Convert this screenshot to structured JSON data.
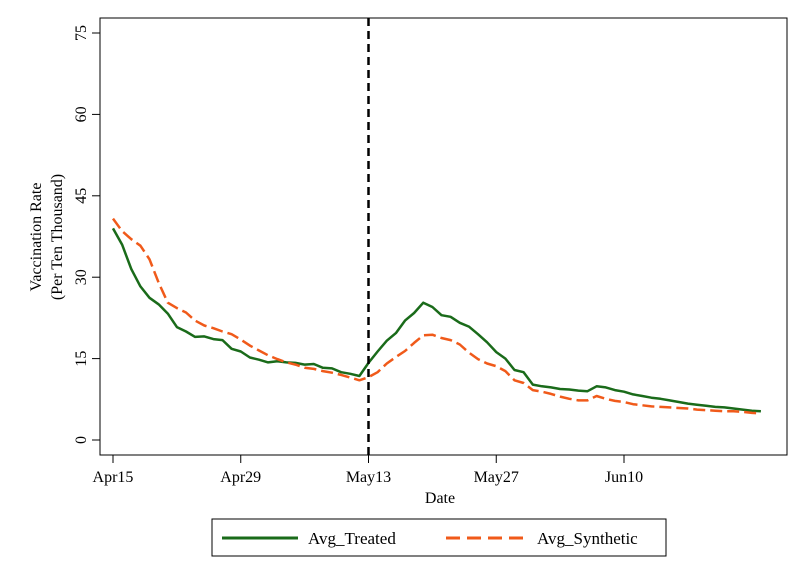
{
  "chart_data": {
    "type": "line",
    "xlabel": "Date",
    "ylabel_lines": [
      "Vaccination Rate",
      "(Per Ten Thousand)"
    ],
    "ylim": [
      0,
      75
    ],
    "yticks": [
      0,
      15,
      30,
      45,
      60,
      75
    ],
    "xlim": [
      "2021-04-15",
      "2021-06-26"
    ],
    "xticks": [
      {
        "date": "2021-04-15",
        "label": "Apr15"
      },
      {
        "date": "2021-04-29",
        "label": "Apr29"
      },
      {
        "date": "2021-05-13",
        "label": "May13"
      },
      {
        "date": "2021-05-27",
        "label": "May27"
      },
      {
        "date": "2021-06-10",
        "label": "Jun10"
      }
    ],
    "vline": {
      "date": "2021-05-13",
      "style": "dashed",
      "color": "#000000"
    },
    "grid": false,
    "legend_position": "bottom",
    "series": [
      {
        "name": "Avg_Treated",
        "color": "#1a6b1a",
        "dash": "solid",
        "points": [
          [
            "2021-04-15",
            39.0
          ],
          [
            "2021-04-16",
            36.0
          ],
          [
            "2021-04-17",
            31.5
          ],
          [
            "2021-04-18",
            28.3
          ],
          [
            "2021-04-19",
            26.2
          ],
          [
            "2021-04-20",
            25.0
          ],
          [
            "2021-04-21",
            23.3
          ],
          [
            "2021-04-22",
            20.8
          ],
          [
            "2021-04-23",
            20.0
          ],
          [
            "2021-04-24",
            19.0
          ],
          [
            "2021-04-25",
            19.1
          ],
          [
            "2021-04-26",
            18.6
          ],
          [
            "2021-04-27",
            18.4
          ],
          [
            "2021-04-28",
            16.8
          ],
          [
            "2021-04-29",
            16.3
          ],
          [
            "2021-04-30",
            15.2
          ],
          [
            "2021-05-01",
            14.8
          ],
          [
            "2021-05-02",
            14.3
          ],
          [
            "2021-05-03",
            14.5
          ],
          [
            "2021-05-04",
            14.3
          ],
          [
            "2021-05-05",
            14.2
          ],
          [
            "2021-05-06",
            13.9
          ],
          [
            "2021-05-07",
            14.0
          ],
          [
            "2021-05-08",
            13.3
          ],
          [
            "2021-05-09",
            13.2
          ],
          [
            "2021-05-10",
            12.5
          ],
          [
            "2021-05-11",
            12.2
          ],
          [
            "2021-05-12",
            11.8
          ],
          [
            "2021-05-13",
            14.2
          ],
          [
            "2021-05-14",
            16.3
          ],
          [
            "2021-05-15",
            18.3
          ],
          [
            "2021-05-16",
            19.7
          ],
          [
            "2021-05-17",
            22.0
          ],
          [
            "2021-05-18",
            23.4
          ],
          [
            "2021-05-19",
            25.3
          ],
          [
            "2021-05-20",
            24.5
          ],
          [
            "2021-05-21",
            23.0
          ],
          [
            "2021-05-22",
            22.7
          ],
          [
            "2021-05-23",
            21.6
          ],
          [
            "2021-05-24",
            20.9
          ],
          [
            "2021-05-25",
            19.5
          ],
          [
            "2021-05-26",
            18.0
          ],
          [
            "2021-05-27",
            16.2
          ],
          [
            "2021-05-28",
            15.0
          ],
          [
            "2021-05-29",
            12.9
          ],
          [
            "2021-05-30",
            12.5
          ],
          [
            "2021-05-31",
            10.2
          ],
          [
            "2021-06-01",
            9.9
          ],
          [
            "2021-06-02",
            9.7
          ],
          [
            "2021-06-03",
            9.4
          ],
          [
            "2021-06-04",
            9.3
          ],
          [
            "2021-06-05",
            9.1
          ],
          [
            "2021-06-06",
            9.0
          ],
          [
            "2021-06-07",
            9.9
          ],
          [
            "2021-06-08",
            9.7
          ],
          [
            "2021-06-09",
            9.2
          ],
          [
            "2021-06-10",
            8.9
          ],
          [
            "2021-06-11",
            8.4
          ],
          [
            "2021-06-12",
            8.1
          ],
          [
            "2021-06-13",
            7.8
          ],
          [
            "2021-06-14",
            7.6
          ],
          [
            "2021-06-15",
            7.3
          ],
          [
            "2021-06-16",
            7.0
          ],
          [
            "2021-06-17",
            6.7
          ],
          [
            "2021-06-18",
            6.5
          ],
          [
            "2021-06-19",
            6.3
          ],
          [
            "2021-06-20",
            6.1
          ],
          [
            "2021-06-21",
            6.0
          ],
          [
            "2021-06-22",
            5.8
          ],
          [
            "2021-06-23",
            5.6
          ],
          [
            "2021-06-24",
            5.4
          ],
          [
            "2021-06-25",
            5.3
          ]
        ]
      },
      {
        "name": "Avg_Synthetic",
        "color": "#f05a1a",
        "dash": "dashed",
        "points": [
          [
            "2021-04-15",
            40.8
          ],
          [
            "2021-04-16",
            38.5
          ],
          [
            "2021-04-17",
            37.0
          ],
          [
            "2021-04-18",
            35.8
          ],
          [
            "2021-04-19",
            33.3
          ],
          [
            "2021-04-20",
            29.0
          ],
          [
            "2021-04-21",
            25.3
          ],
          [
            "2021-04-22",
            24.3
          ],
          [
            "2021-04-23",
            23.5
          ],
          [
            "2021-04-24",
            22.0
          ],
          [
            "2021-04-25",
            21.1
          ],
          [
            "2021-04-26",
            20.6
          ],
          [
            "2021-04-27",
            20.0
          ],
          [
            "2021-04-28",
            19.5
          ],
          [
            "2021-04-29",
            18.5
          ],
          [
            "2021-04-30",
            17.4
          ],
          [
            "2021-05-01",
            16.5
          ],
          [
            "2021-05-02",
            15.6
          ],
          [
            "2021-05-03",
            14.9
          ],
          [
            "2021-05-04",
            14.3
          ],
          [
            "2021-05-05",
            13.9
          ],
          [
            "2021-05-06",
            13.3
          ],
          [
            "2021-05-07",
            13.1
          ],
          [
            "2021-05-08",
            12.7
          ],
          [
            "2021-05-09",
            12.4
          ],
          [
            "2021-05-10",
            12.0
          ],
          [
            "2021-05-11",
            11.5
          ],
          [
            "2021-05-12",
            11.0
          ],
          [
            "2021-05-13",
            11.6
          ],
          [
            "2021-05-14",
            12.5
          ],
          [
            "2021-05-15",
            14.1
          ],
          [
            "2021-05-16",
            15.3
          ],
          [
            "2021-05-17",
            16.4
          ],
          [
            "2021-05-18",
            17.9
          ],
          [
            "2021-05-19",
            19.3
          ],
          [
            "2021-05-20",
            19.4
          ],
          [
            "2021-05-21",
            18.8
          ],
          [
            "2021-05-22",
            18.4
          ],
          [
            "2021-05-23",
            17.6
          ],
          [
            "2021-05-24",
            16.1
          ],
          [
            "2021-05-25",
            14.9
          ],
          [
            "2021-05-26",
            14.1
          ],
          [
            "2021-05-27",
            13.6
          ],
          [
            "2021-05-28",
            12.7
          ],
          [
            "2021-05-29",
            11.0
          ],
          [
            "2021-05-30",
            10.5
          ],
          [
            "2021-05-31",
            9.2
          ],
          [
            "2021-06-01",
            8.9
          ],
          [
            "2021-06-02",
            8.5
          ],
          [
            "2021-06-03",
            8.0
          ],
          [
            "2021-06-04",
            7.6
          ],
          [
            "2021-06-05",
            7.3
          ],
          [
            "2021-06-06",
            7.3
          ],
          [
            "2021-06-07",
            8.1
          ],
          [
            "2021-06-08",
            7.6
          ],
          [
            "2021-06-09",
            7.2
          ],
          [
            "2021-06-10",
            7.0
          ],
          [
            "2021-06-11",
            6.6
          ],
          [
            "2021-06-12",
            6.4
          ],
          [
            "2021-06-13",
            6.2
          ],
          [
            "2021-06-14",
            6.1
          ],
          [
            "2021-06-15",
            6.0
          ],
          [
            "2021-06-16",
            5.9
          ],
          [
            "2021-06-17",
            5.8
          ],
          [
            "2021-06-18",
            5.6
          ],
          [
            "2021-06-19",
            5.5
          ],
          [
            "2021-06-20",
            5.4
          ],
          [
            "2021-06-21",
            5.3
          ],
          [
            "2021-06-22",
            5.3
          ],
          [
            "2021-06-23",
            5.2
          ],
          [
            "2021-06-24",
            5.0
          ],
          [
            "2021-06-25",
            4.9
          ]
        ]
      }
    ]
  }
}
